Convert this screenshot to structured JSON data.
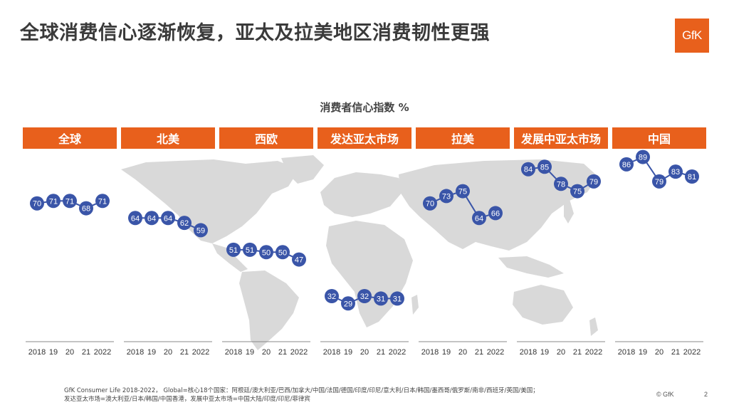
{
  "title": "全球消费信心逐渐恢复，亚太及拉美地区消费韧性更强",
  "logo_text": "GfK",
  "footnote_line1": "GfK Consumer Life 2018-2022， Global=核心18个国家：阿根廷/澳大利亚/巴西/加拿大/中国/法国/德国/印度/印尼/意大利/日本/韩国/墨西哥/俄罗斯/南非/西班牙/英国/美国；",
  "footnote_line2": "发达亚太市场=澳大利亚/日本/韩国/中国香港，发展中亚太市场=中国大陆/印度/印尼/菲律宾",
  "copyright": "© GfK",
  "page_number": "2",
  "colors": {
    "accent": "#e8601c",
    "series": "#3a55a8",
    "map": "#d9d9d9"
  },
  "chart_data": {
    "type": "line",
    "title": "消费者信心指数 %",
    "x_tick_labels": [
      "2018",
      "19",
      "20",
      "21",
      "2022"
    ],
    "x": [
      2018,
      2019,
      2020,
      2021,
      2022
    ],
    "series": [
      {
        "name": "全球",
        "values": [
          70,
          71,
          71,
          68,
          71
        ]
      },
      {
        "name": "北美",
        "values": [
          64,
          64,
          64,
          62,
          59
        ]
      },
      {
        "name": "西欧",
        "values": [
          51,
          51,
          50,
          50,
          47
        ]
      },
      {
        "name": "发达亚太市场",
        "values": [
          32,
          29,
          32,
          31,
          31
        ]
      },
      {
        "name": "拉美",
        "values": [
          70,
          73,
          75,
          64,
          66
        ]
      },
      {
        "name": "发展中亚太市场",
        "values": [
          84,
          85,
          78,
          75,
          79
        ]
      },
      {
        "name": "中国",
        "values": [
          86,
          89,
          79,
          83,
          81
        ]
      }
    ],
    "ylim": [
      25,
      95
    ],
    "grid": false,
    "legend": "none"
  }
}
